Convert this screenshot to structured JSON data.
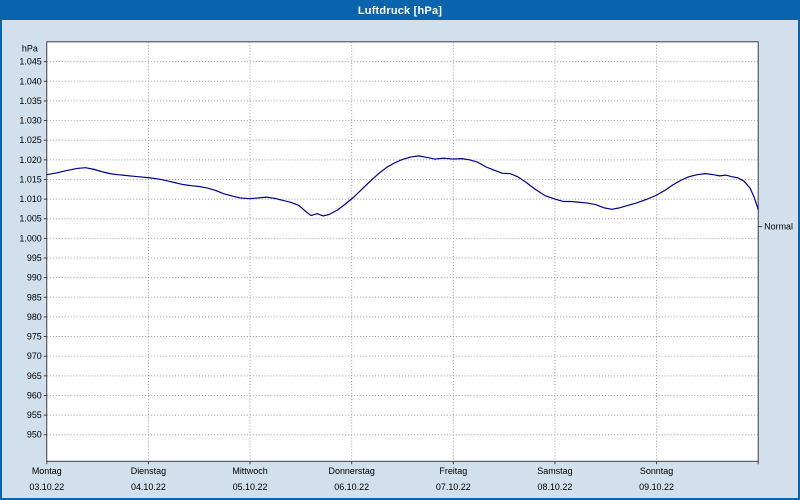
{
  "window": {
    "title": "Luftdruck [hPa]"
  },
  "colors": {
    "window_bg": "#d2dfec",
    "titlebar_bg": "#0a64ad",
    "titlebar_text": "#ffffff",
    "plot_bg": "#ffffff",
    "grid": "#9c9c9c",
    "frame": "#404040",
    "line": "#00008b",
    "text": "#000000"
  },
  "chart_data": {
    "type": "line",
    "title": "Luftdruck [hPa]",
    "grid_style": "dashed",
    "legend_position": "none",
    "y_axis": {
      "unit": "hPa",
      "min": 950,
      "max": 1045,
      "step": 5,
      "ticks": [
        {
          "value": 1045,
          "label": "1.045"
        },
        {
          "value": 1040,
          "label": "1.040"
        },
        {
          "value": 1035,
          "label": "1.035"
        },
        {
          "value": 1030,
          "label": "1.030"
        },
        {
          "value": 1025,
          "label": "1.025"
        },
        {
          "value": 1020,
          "label": "1.020"
        },
        {
          "value": 1015,
          "label": "1.015"
        },
        {
          "value": 1010,
          "label": "1.010"
        },
        {
          "value": 1005,
          "label": "1.005"
        },
        {
          "value": 1000,
          "label": "1.000"
        },
        {
          "value": 995,
          "label": "995"
        },
        {
          "value": 990,
          "label": "990"
        },
        {
          "value": 985,
          "label": "985"
        },
        {
          "value": 980,
          "label": "980"
        },
        {
          "value": 975,
          "label": "975"
        },
        {
          "value": 970,
          "label": "970"
        },
        {
          "value": 965,
          "label": "965"
        },
        {
          "value": 960,
          "label": "960"
        },
        {
          "value": 955,
          "label": "955"
        },
        {
          "value": 950,
          "label": "950"
        }
      ]
    },
    "x_axis": {
      "unit": "days",
      "span_days": 7,
      "days": [
        {
          "name": "Montag",
          "date": "03.10.22"
        },
        {
          "name": "Dienstag",
          "date": "04.10.22"
        },
        {
          "name": "Mittwoch",
          "date": "05.10.22"
        },
        {
          "name": "Donnerstag",
          "date": "06.10.22"
        },
        {
          "name": "Freitag",
          "date": "07.10.22"
        },
        {
          "name": "Samstag",
          "date": "08.10.22"
        },
        {
          "name": "Sonntag",
          "date": "09.10.22"
        }
      ]
    },
    "normal": {
      "label": "Normal",
      "value": 1003
    },
    "series": [
      {
        "name": "Luftdruck",
        "color": "#00008b",
        "x_unit": "days_from_start",
        "points": [
          [
            0.0,
            1016.2
          ],
          [
            0.1,
            1016.7
          ],
          [
            0.2,
            1017.3
          ],
          [
            0.3,
            1017.8
          ],
          [
            0.38,
            1018.0
          ],
          [
            0.46,
            1017.6
          ],
          [
            0.54,
            1017.0
          ],
          [
            0.62,
            1016.5
          ],
          [
            0.7,
            1016.2
          ],
          [
            0.78,
            1016.0
          ],
          [
            0.86,
            1015.8
          ],
          [
            0.94,
            1015.6
          ],
          [
            1.02,
            1015.4
          ],
          [
            1.1,
            1015.1
          ],
          [
            1.18,
            1014.7
          ],
          [
            1.26,
            1014.2
          ],
          [
            1.34,
            1013.7
          ],
          [
            1.42,
            1013.4
          ],
          [
            1.5,
            1013.2
          ],
          [
            1.58,
            1012.8
          ],
          [
            1.66,
            1012.2
          ],
          [
            1.74,
            1011.4
          ],
          [
            1.82,
            1010.8
          ],
          [
            1.9,
            1010.3
          ],
          [
            2.0,
            1010.1
          ],
          [
            2.08,
            1010.3
          ],
          [
            2.16,
            1010.5
          ],
          [
            2.24,
            1010.2
          ],
          [
            2.32,
            1009.7
          ],
          [
            2.4,
            1009.2
          ],
          [
            2.48,
            1008.4
          ],
          [
            2.55,
            1006.8
          ],
          [
            2.6,
            1005.8
          ],
          [
            2.66,
            1006.3
          ],
          [
            2.72,
            1005.7
          ],
          [
            2.78,
            1006.1
          ],
          [
            2.86,
            1007.2
          ],
          [
            2.94,
            1008.8
          ],
          [
            3.02,
            1010.5
          ],
          [
            3.1,
            1012.5
          ],
          [
            3.18,
            1014.5
          ],
          [
            3.26,
            1016.4
          ],
          [
            3.34,
            1018.0
          ],
          [
            3.42,
            1019.2
          ],
          [
            3.5,
            1020.1
          ],
          [
            3.58,
            1020.7
          ],
          [
            3.66,
            1021.0
          ],
          [
            3.74,
            1020.6
          ],
          [
            3.82,
            1020.2
          ],
          [
            3.9,
            1020.4
          ],
          [
            4.0,
            1020.2
          ],
          [
            4.08,
            1020.3
          ],
          [
            4.16,
            1020.0
          ],
          [
            4.24,
            1019.4
          ],
          [
            4.32,
            1018.2
          ],
          [
            4.4,
            1017.4
          ],
          [
            4.48,
            1016.6
          ],
          [
            4.56,
            1016.5
          ],
          [
            4.64,
            1015.6
          ],
          [
            4.72,
            1014.2
          ],
          [
            4.8,
            1012.6
          ],
          [
            4.9,
            1010.9
          ],
          [
            5.0,
            1010.0
          ],
          [
            5.08,
            1009.4
          ],
          [
            5.16,
            1009.4
          ],
          [
            5.24,
            1009.2
          ],
          [
            5.32,
            1009.0
          ],
          [
            5.4,
            1008.6
          ],
          [
            5.48,
            1007.8
          ],
          [
            5.56,
            1007.4
          ],
          [
            5.64,
            1007.8
          ],
          [
            5.72,
            1008.4
          ],
          [
            5.8,
            1009.0
          ],
          [
            5.9,
            1009.9
          ],
          [
            6.0,
            1011.0
          ],
          [
            6.08,
            1012.2
          ],
          [
            6.16,
            1013.6
          ],
          [
            6.24,
            1014.8
          ],
          [
            6.32,
            1015.7
          ],
          [
            6.4,
            1016.2
          ],
          [
            6.48,
            1016.5
          ],
          [
            6.56,
            1016.2
          ],
          [
            6.62,
            1015.9
          ],
          [
            6.68,
            1016.1
          ],
          [
            6.74,
            1015.7
          ],
          [
            6.8,
            1015.4
          ],
          [
            6.86,
            1014.6
          ],
          [
            6.92,
            1012.8
          ],
          [
            6.96,
            1010.5
          ],
          [
            7.0,
            1007.4
          ]
        ]
      }
    ]
  }
}
